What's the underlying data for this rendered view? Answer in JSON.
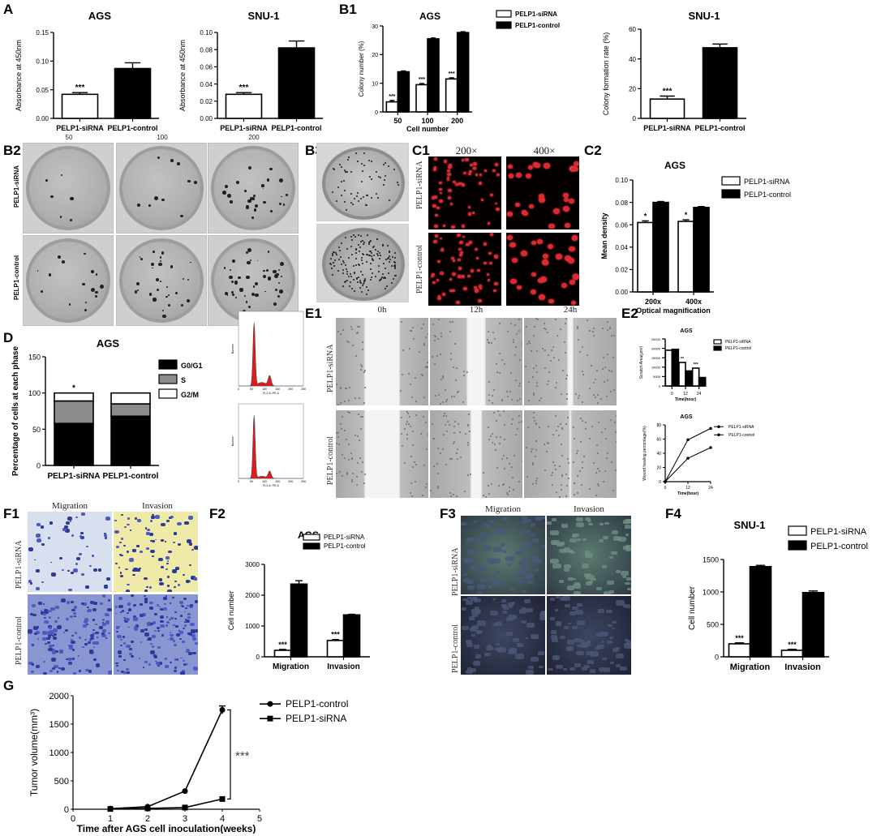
{
  "panel_labels": {
    "A": "A",
    "B1": "B1",
    "B2": "B2",
    "B3": "B3",
    "C1": "C1",
    "C2": "C2",
    "D": "D",
    "E1": "E1",
    "E2": "E2",
    "F1": "F1",
    "F2": "F2",
    "F3": "F3",
    "F4": "F4",
    "G": "G"
  },
  "images": {
    "B2": {
      "columns": [
        "50",
        "100",
        "200"
      ],
      "rows": [
        "PELP1-siRNA",
        "PELP1-control"
      ]
    },
    "C1": {
      "columns": [
        "200×",
        "400×"
      ],
      "rows": [
        "PELP1-siRNA",
        "PELP1-control"
      ]
    },
    "E1": {
      "columns": [
        "0h",
        "12h",
        "24h"
      ],
      "rows": [
        "PELP1-siRNA",
        "PELP1-control"
      ]
    },
    "F1": {
      "columns": [
        "Migration",
        "Invasion"
      ],
      "rows": [
        "PELP1-siRNA",
        "PELP1-control"
      ]
    },
    "F3": {
      "columns": [
        "Migration",
        "Invasion"
      ],
      "rows": [
        "PELP1-siRNA",
        "PELP1-control"
      ]
    },
    "D_flow": {
      "xlabel": "FL2-A: PE-A",
      "ylabel": "Number",
      "ticks": [
        "0",
        "50",
        "100",
        "150",
        "200",
        "250"
      ],
      "colors": {
        "fill": "#e31a1c",
        "line": "#444444"
      }
    }
  },
  "chart_data": [
    {
      "id": "A_AGS",
      "type": "bar",
      "title": "AGS",
      "xlabel": "",
      "ylabel": "Absorbance at 450nm",
      "categories": [
        "PELP1-siRNA",
        "PELP1-control"
      ],
      "values": [
        0.042,
        0.087
      ],
      "errors": [
        0.003,
        0.01
      ],
      "ylim": [
        0,
        0.15
      ],
      "yticks": [
        "0.00",
        "0.05",
        "0.10",
        "0.15"
      ],
      "significance": [
        "***",
        ""
      ],
      "colors": [
        "#ffffff",
        "#000000"
      ]
    },
    {
      "id": "A_SNU1",
      "type": "bar",
      "title": "SNU-1",
      "xlabel": "",
      "ylabel": "Absorbance at 450nm",
      "categories": [
        "PELP1-siRNA",
        "PELP1-control"
      ],
      "values": [
        0.028,
        0.082
      ],
      "errors": [
        0.002,
        0.008
      ],
      "ylim": [
        0,
        0.1
      ],
      "yticks": [
        "0.00",
        "0.02",
        "0.04",
        "0.06",
        "0.08",
        "0.10"
      ],
      "significance": [
        "***",
        ""
      ],
      "colors": [
        "#ffffff",
        "#000000"
      ]
    },
    {
      "id": "B1_AGS",
      "type": "bar",
      "title": "AGS",
      "xlabel": "Cell number",
      "ylabel": "Colony number (%)",
      "categories": [
        "50",
        "100",
        "200"
      ],
      "series": [
        {
          "name": "PELP1-siRNA",
          "values": [
            3.5,
            9.5,
            11.5
          ],
          "errors": [
            0.5,
            0.4,
            0.4
          ],
          "significance": [
            "***",
            "***",
            "***"
          ]
        },
        {
          "name": "PELP1-control",
          "values": [
            14,
            25.5,
            27.7
          ],
          "errors": [
            0.3,
            0.3,
            0.3
          ],
          "significance": [
            "",
            "",
            ""
          ]
        }
      ],
      "ylim": [
        0,
        30
      ],
      "yticks": [
        "0",
        "10",
        "20",
        "30"
      ],
      "legend": "top-right",
      "colors": [
        "#ffffff",
        "#000000"
      ]
    },
    {
      "id": "B1_SNU1",
      "type": "bar",
      "title": "SNU-1",
      "xlabel": "",
      "ylabel": "Colony formation rate (%)",
      "categories": [
        "PELP1-siRNA",
        "PELP1-control"
      ],
      "values": [
        13,
        47.5
      ],
      "errors": [
        2,
        2.5
      ],
      "ylim": [
        0,
        60
      ],
      "yticks": [
        "0",
        "20",
        "40",
        "60"
      ],
      "significance": [
        "***",
        ""
      ],
      "colors": [
        "#ffffff",
        "#000000"
      ]
    },
    {
      "id": "C2_AGS",
      "type": "bar",
      "title": "AGS",
      "xlabel": "Optical magnification",
      "ylabel": "Mean density",
      "categories": [
        "200x",
        "400x"
      ],
      "series": [
        {
          "name": "PELP1-siRNA",
          "values": [
            0.062,
            0.063
          ],
          "errors": [
            0.0015,
            0.0015
          ],
          "significance": [
            "*",
            "*"
          ]
        },
        {
          "name": "PELP1-control",
          "values": [
            0.08,
            0.0755
          ],
          "errors": [
            0.0008,
            0.0008
          ],
          "significance": [
            "",
            ""
          ]
        }
      ],
      "ylim": [
        0,
        0.1
      ],
      "yticks": [
        "0.00",
        "0.02",
        "0.04",
        "0.06",
        "0.08",
        "0.10"
      ],
      "legend": "top-right",
      "colors": [
        "#ffffff",
        "#000000"
      ]
    },
    {
      "id": "D_AGS",
      "type": "bar",
      "stacked": true,
      "title": "AGS",
      "xlabel": "",
      "ylabel": "Percentage of cells at each phase",
      "categories": [
        "PELP1-siRNA",
        "PELP1-control"
      ],
      "series": [
        {
          "name": "G0/G1",
          "values": [
            58,
            68
          ]
        },
        {
          "name": "S",
          "values": [
            31,
            17
          ]
        },
        {
          "name": "G2/M",
          "values": [
            11,
            15
          ]
        }
      ],
      "significance": [
        "*",
        ""
      ],
      "ylim": [
        0,
        150
      ],
      "yticks": [
        "0",
        "50",
        "100",
        "150"
      ],
      "legend": "right",
      "colors": [
        "#000000",
        "#8c8c8c",
        "#ffffff"
      ]
    },
    {
      "id": "E2_bar",
      "type": "bar",
      "title": "AGS",
      "xlabel": "Time(hour)",
      "ylabel": "Scratch Area(μm²)",
      "categories": [
        "0",
        "12",
        "24"
      ],
      "series": [
        {
          "name": "PELP1-siRNA",
          "values": [
            19000,
            12500,
            9500
          ],
          "significance": [
            "",
            "**",
            "***"
          ]
        },
        {
          "name": "PELP1-control",
          "values": [
            19500,
            8000,
            4500
          ],
          "significance": [
            "",
            "",
            ""
          ]
        }
      ],
      "ylim": [
        0,
        25000
      ],
      "yticks": [
        "0",
        "5000",
        "10000",
        "15000",
        "20000",
        "25000"
      ],
      "legend": "top-right",
      "colors": [
        "#ffffff",
        "#000000"
      ]
    },
    {
      "id": "E2_line",
      "type": "line",
      "title": "AGS",
      "xlabel": "Time(hour)",
      "ylabel": "Wound healing percentage(%)",
      "x": [
        0,
        12,
        24
      ],
      "series": [
        {
          "name": "PELP1-siRNA",
          "values": [
            0,
            33,
            48
          ]
        },
        {
          "name": "PELP1-control",
          "values": [
            0,
            59,
            75
          ]
        }
      ],
      "ylim": [
        0,
        80
      ],
      "yticks": [
        "0",
        "20",
        "40",
        "60",
        "80"
      ],
      "xticks": [
        "0",
        "12",
        "24"
      ],
      "legend": "top-right",
      "colors": [
        "#000000",
        "#000000"
      ]
    },
    {
      "id": "F2_AGS",
      "type": "bar",
      "title": "AGS",
      "xlabel": "",
      "ylabel": "Cell number",
      "categories": [
        "Migration",
        "Invasion"
      ],
      "series": [
        {
          "name": "PELP1-siRNA",
          "values": [
            210,
            530
          ],
          "errors": [
            30,
            30
          ],
          "significance": [
            "***",
            "***"
          ]
        },
        {
          "name": "PELP1-control",
          "values": [
            2360,
            1360
          ],
          "errors": [
            110,
            20
          ],
          "significance": [
            "",
            ""
          ]
        }
      ],
      "ylim": [
        0,
        3000
      ],
      "yticks": [
        "0",
        "1000",
        "2000",
        "3000"
      ],
      "legend": "top-right",
      "colors": [
        "#ffffff",
        "#000000"
      ]
    },
    {
      "id": "F4_SNU1",
      "type": "bar",
      "title": "SNU-1",
      "xlabel": "",
      "ylabel": "Cell number",
      "categories": [
        "Migration",
        "Invasion"
      ],
      "series": [
        {
          "name": "PELP1-siRNA",
          "values": [
            200,
            100
          ],
          "errors": [
            15,
            15
          ],
          "significance": [
            "***",
            "***"
          ]
        },
        {
          "name": "PELP1-control",
          "values": [
            1390,
            990
          ],
          "errors": [
            20,
            25
          ],
          "significance": [
            "",
            ""
          ]
        }
      ],
      "ylim": [
        0,
        1500
      ],
      "yticks": [
        "0",
        "500",
        "1000",
        "1500"
      ],
      "legend": "top-right",
      "colors": [
        "#ffffff",
        "#000000"
      ]
    },
    {
      "id": "G_tumor",
      "type": "line",
      "title": "",
      "xlabel": "Time after AGS cell inoculation(weeks)",
      "ylabel": "Tumor volume(mm³)",
      "x": [
        1,
        2,
        3,
        4
      ],
      "series": [
        {
          "name": "PELP1-control",
          "values": [
            10,
            45,
            320,
            1750
          ],
          "marker": "circle"
        },
        {
          "name": "PELP1-siRNA",
          "values": [
            5,
            15,
            30,
            180
          ],
          "marker": "square"
        }
      ],
      "xlim": [
        0,
        5
      ],
      "ylim": [
        0,
        2000
      ],
      "xticks": [
        "0",
        "1",
        "2",
        "3",
        "4",
        "5"
      ],
      "yticks": [
        "0",
        "500",
        "1000",
        "1500",
        "2000"
      ],
      "significance": "***",
      "legend": "top-right",
      "colors": [
        "#000000",
        "#000000"
      ]
    }
  ]
}
